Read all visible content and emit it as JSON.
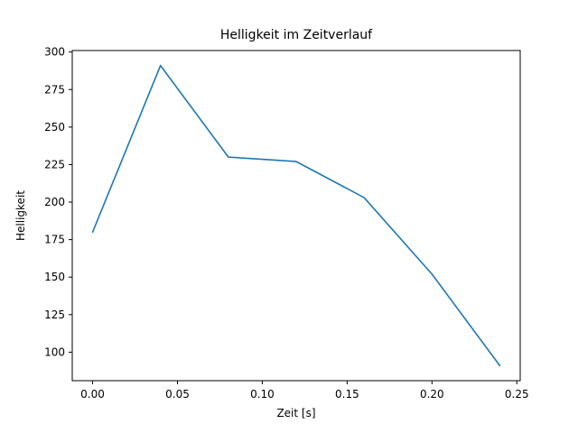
{
  "chart_data": {
    "type": "line",
    "title": "Helligkeit im Zeitverlauf",
    "xlabel": "Zeit [s]",
    "ylabel": "Helligkeit",
    "x": [
      0.0,
      0.04,
      0.08,
      0.12,
      0.16,
      0.2,
      0.24
    ],
    "y": [
      180,
      291,
      230,
      227,
      203,
      152,
      91
    ],
    "series_name": "Helligkeit",
    "xlim": [
      -0.012,
      0.252
    ],
    "ylim": [
      81,
      301
    ],
    "xticks": [
      0.0,
      0.05,
      0.1,
      0.15,
      0.2,
      0.25
    ],
    "xtick_labels": [
      "0.00",
      "0.05",
      "0.10",
      "0.15",
      "0.20",
      "0.25"
    ],
    "yticks": [
      100,
      125,
      150,
      175,
      200,
      225,
      250,
      275,
      300
    ],
    "ytick_labels": [
      "100",
      "125",
      "150",
      "175",
      "200",
      "225",
      "250",
      "275",
      "300"
    ],
    "line_color": "#1f77b4",
    "spine_color": "#000000",
    "background": "#ffffff",
    "grid": false,
    "legend": "none"
  }
}
